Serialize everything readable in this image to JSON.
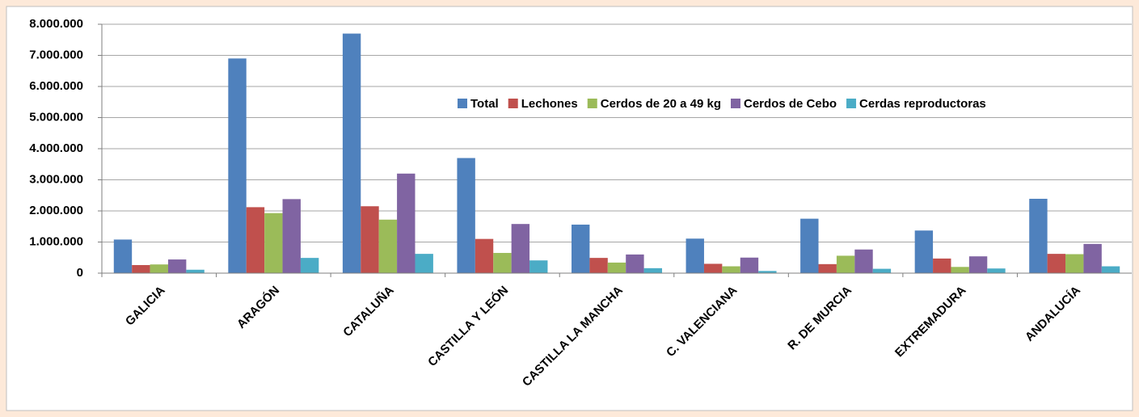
{
  "chart_data": {
    "type": "bar",
    "categories": [
      "GALICIA",
      "ARAGÓN",
      "CATALUÑA",
      "CASTILLA Y LEÓN",
      "CASTILLA LA MANCHA",
      "C. VALENCIANA",
      "R. DE MURCIA",
      "EXTREMADURA",
      "ANDALUCÍA"
    ],
    "series": [
      {
        "name": "Total",
        "color": "#4f81bd",
        "values": [
          1080000,
          6900000,
          7700000,
          3700000,
          1560000,
          1110000,
          1750000,
          1370000,
          2390000
        ]
      },
      {
        "name": "Lechones",
        "color": "#c0504d",
        "values": [
          260000,
          2120000,
          2150000,
          1100000,
          490000,
          300000,
          290000,
          470000,
          620000
        ]
      },
      {
        "name": "Cerdos de 20 a 49 kg",
        "color": "#9bbb59",
        "values": [
          280000,
          1930000,
          1720000,
          650000,
          340000,
          220000,
          560000,
          200000,
          610000
        ]
      },
      {
        "name": "Cerdos de Cebo",
        "color": "#8064a2",
        "values": [
          440000,
          2380000,
          3200000,
          1580000,
          600000,
          500000,
          760000,
          540000,
          940000
        ]
      },
      {
        "name": "Cerdas reproductoras",
        "color": "#4bacc6",
        "values": [
          110000,
          490000,
          620000,
          410000,
          160000,
          70000,
          140000,
          150000,
          220000
        ]
      }
    ],
    "ylim": [
      0,
      8000000
    ],
    "yticks": [
      0,
      {
        "value": 1000000,
        "label": "1.000.000"
      },
      {
        "value": 2000000,
        "label": "2.000.000"
      },
      {
        "value": 3000000,
        "label": "3.000.000"
      },
      {
        "value": 4000000,
        "label": "4.000.000"
      },
      {
        "value": 5000000,
        "label": "5.000.000"
      },
      {
        "value": 6000000,
        "label": "6.000.000"
      },
      {
        "value": 7000000,
        "label": "7.000.000"
      },
      {
        "value": 8000000,
        "label": "8.000.000"
      }
    ],
    "grid": true
  }
}
